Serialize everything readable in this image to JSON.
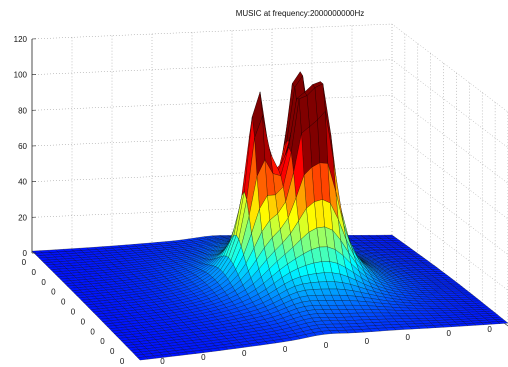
{
  "chart_data": {
    "type": "surface",
    "title": "MUSIC at frequency:2000000000Hz",
    "xlabel": "",
    "ylabel": "",
    "zlabel": "",
    "zlim": [
      0,
      120
    ],
    "z_ticks": [
      0,
      20,
      40,
      60,
      80,
      100,
      120
    ],
    "z_tick_labels": [
      "0",
      "20",
      "40",
      "60",
      "80",
      "100",
      "120"
    ],
    "x_tick_labels": [
      "0",
      "0",
      "0",
      "0",
      "0",
      "0",
      "0",
      "0",
      "0"
    ],
    "y_tick_labels": [
      "0",
      "0",
      "0",
      "0",
      "0",
      "0",
      "0",
      "0",
      "0",
      "0",
      "0"
    ],
    "grid": true,
    "colormap": "jet",
    "peaks": [
      {
        "u": 0.47,
        "v": 0.5,
        "height": 97
      },
      {
        "u": 0.6,
        "v": 0.44,
        "height": 83
      },
      {
        "u": 0.63,
        "v": 0.56,
        "height": 94
      },
      {
        "u": 0.57,
        "v": 0.56,
        "height": 70
      },
      {
        "u": 0.63,
        "v": 0.36,
        "height": 62
      }
    ]
  }
}
